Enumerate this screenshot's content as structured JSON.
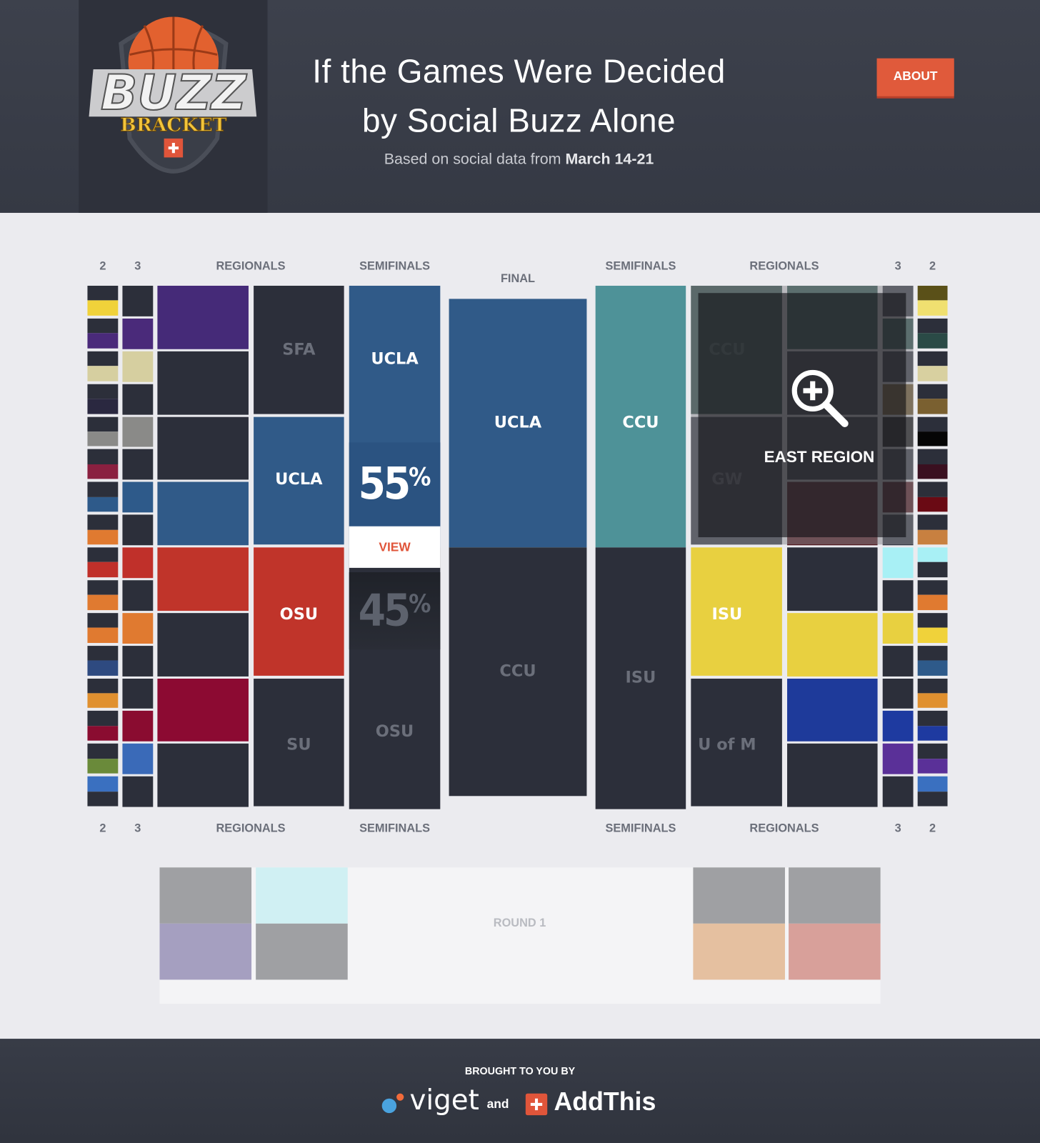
{
  "header": {
    "logo": {
      "word": "BUZZ",
      "sub": "BRACKET"
    },
    "title_lines": [
      "If the Games Were Decided",
      "by Social Buzz Alone"
    ],
    "subtitle": {
      "prefix": "Based on social data from",
      "dates": "March 14-21"
    },
    "about": "ABOUT"
  },
  "bracket": {
    "headers_top": {
      "left": [
        "2",
        "3",
        "REGIONALS",
        "SEMIFINALS"
      ],
      "final": "FINAL",
      "right": [
        "SEMIFINALS",
        "REGIONALS",
        "3",
        "2"
      ]
    },
    "headers_bottom": {
      "left": [
        "2",
        "3",
        "REGIONALS",
        "SEMIFINALS"
      ],
      "right": [
        "SEMIFINALS",
        "REGIONALS",
        "3",
        "2"
      ]
    },
    "left_regionals": [
      "SFA",
      "UCLA",
      "OSU",
      "SU"
    ],
    "left_semifinals": [
      "UCLA",
      "OSU"
    ],
    "final": [
      "UCLA",
      "CCU"
    ],
    "right_semifinals": [
      "CCU",
      "ISU"
    ],
    "right_regionals": [
      "CCU",
      "GW",
      "ISU",
      "U of M"
    ],
    "matchup": {
      "top_percent": "55",
      "bottom_percent": "45",
      "percent_sign": "%",
      "view": "VIEW"
    },
    "east_region": "EAST REGION",
    "round1": "ROUND 1"
  },
  "footer": {
    "credit": "BROUGHT TO YOU BY",
    "partner1": "viget",
    "joiner": "and",
    "partner2": "AddThis"
  }
}
